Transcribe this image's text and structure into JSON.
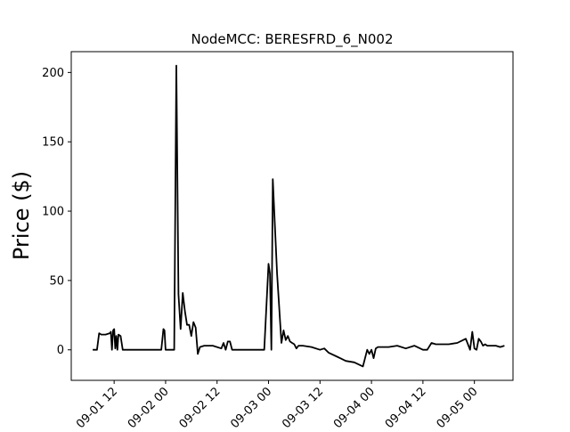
{
  "chart_data": {
    "type": "line",
    "title": "NodeMCC: BERESFRD_6_N002",
    "xlabel": "",
    "ylabel": "Price ($)",
    "xlim": [
      "2021-09-01T02:00",
      "2021-09-05T09:00"
    ],
    "ylim": [
      -22,
      215
    ],
    "y_ticks": [
      0,
      50,
      100,
      150,
      200
    ],
    "x_ticks": [
      {
        "t": "2021-09-01T12:00",
        "label": "09-01 12"
      },
      {
        "t": "2021-09-02T00:00",
        "label": "09-02 00"
      },
      {
        "t": "2021-09-02T12:00",
        "label": "09-02 12"
      },
      {
        "t": "2021-09-03T00:00",
        "label": "09-03 00"
      },
      {
        "t": "2021-09-03T12:00",
        "label": "09-03 12"
      },
      {
        "t": "2021-09-04T00:00",
        "label": "09-04 00"
      },
      {
        "t": "2021-09-04T12:00",
        "label": "09-04 12"
      },
      {
        "t": "2021-09-05T00:00",
        "label": "09-05 00"
      }
    ],
    "grid": false,
    "line_color": "#000000",
    "series": [
      {
        "x": [
          "2021-09-01T07:00",
          "2021-09-01T08:00",
          "2021-09-01T08:30",
          "2021-09-01T09:00",
          "2021-09-01T10:00",
          "2021-09-01T11:00",
          "2021-09-01T11:15",
          "2021-09-01T11:30",
          "2021-09-01T11:45",
          "2021-09-01T12:00",
          "2021-09-01T12:15",
          "2021-09-01T12:30",
          "2021-09-01T12:45",
          "2021-09-01T13:00",
          "2021-09-01T13:30",
          "2021-09-01T14:00",
          "2021-09-01T14:30",
          "2021-09-01T15:00",
          "2021-09-01T16:00",
          "2021-09-01T20:00",
          "2021-09-01T23:00",
          "2021-09-01T23:30",
          "2021-09-01T23:45",
          "2021-09-02T00:00",
          "2021-09-02T01:00",
          "2021-09-02T02:00",
          "2021-09-02T02:30",
          "2021-09-02T03:00",
          "2021-09-02T03:30",
          "2021-09-02T04:00",
          "2021-09-02T04:30",
          "2021-09-02T05:00",
          "2021-09-02T05:30",
          "2021-09-02T06:00",
          "2021-09-02T06:30",
          "2021-09-02T07:00",
          "2021-09-02T07:30",
          "2021-09-02T08:00",
          "2021-09-02T09:00",
          "2021-09-02T11:00",
          "2021-09-02T13:00",
          "2021-09-02T13:30",
          "2021-09-02T14:00",
          "2021-09-02T14:30",
          "2021-09-02T15:00",
          "2021-09-02T15:30",
          "2021-09-02T16:00",
          "2021-09-02T17:00",
          "2021-09-02T20:00",
          "2021-09-02T23:00",
          "2021-09-03T00:00",
          "2021-09-03T00:20",
          "2021-09-03T00:40",
          "2021-09-03T01:00",
          "2021-09-03T02:00",
          "2021-09-03T03:00",
          "2021-09-03T03:30",
          "2021-09-03T04:00",
          "2021-09-03T04:30",
          "2021-09-03T05:00",
          "2021-09-03T05:30",
          "2021-09-03T06:00",
          "2021-09-03T06:30",
          "2021-09-03T07:00",
          "2021-09-03T07:30",
          "2021-09-03T08:00",
          "2021-09-03T10:00",
          "2021-09-03T12:00",
          "2021-09-03T13:00",
          "2021-09-03T14:00",
          "2021-09-03T16:00",
          "2021-09-03T18:00",
          "2021-09-03T20:00",
          "2021-09-03T22:00",
          "2021-09-03T23:00",
          "2021-09-03T23:30",
          "2021-09-04T00:00",
          "2021-09-04T00:30",
          "2021-09-04T01:00",
          "2021-09-04T01:30",
          "2021-09-04T02:00",
          "2021-09-04T04:00",
          "2021-09-04T06:00",
          "2021-09-04T08:00",
          "2021-09-04T10:00",
          "2021-09-04T12:00",
          "2021-09-04T13:00",
          "2021-09-04T14:00",
          "2021-09-04T15:00",
          "2021-09-04T16:00",
          "2021-09-04T18:00",
          "2021-09-04T20:00",
          "2021-09-04T22:00",
          "2021-09-04T23:00",
          "2021-09-04T23:30",
          "2021-09-05T00:00",
          "2021-09-05T00:30",
          "2021-09-05T01:00",
          "2021-09-05T01:30",
          "2021-09-05T02:00",
          "2021-09-05T02:30",
          "2021-09-05T03:00",
          "2021-09-05T04:00",
          "2021-09-05T05:00",
          "2021-09-05T06:00",
          "2021-09-05T07:00"
        ],
        "y": [
          0,
          0,
          12,
          11,
          11,
          12,
          13,
          0,
          14,
          15,
          1,
          10,
          0,
          11,
          10,
          0,
          0,
          0,
          0,
          0,
          0,
          15,
          14,
          0,
          0,
          0,
          205,
          40,
          15,
          41,
          28,
          18,
          18,
          10,
          20,
          16,
          -3,
          2,
          3,
          3,
          1,
          5,
          0,
          6,
          6,
          0,
          0,
          0,
          0,
          0,
          62,
          55,
          0,
          123,
          55,
          5,
          14,
          7,
          10,
          6,
          5,
          4,
          1,
          3,
          3,
          3,
          2,
          0,
          1,
          -2,
          -5,
          -8,
          -9,
          -12,
          0,
          -3,
          0,
          -6,
          1,
          2,
          2,
          2,
          3,
          1,
          3,
          0,
          0,
          5,
          4,
          4,
          4,
          5,
          8,
          0,
          13,
          1,
          0,
          8,
          6,
          3,
          4,
          3,
          3,
          3,
          2,
          3
        ]
      }
    ]
  }
}
